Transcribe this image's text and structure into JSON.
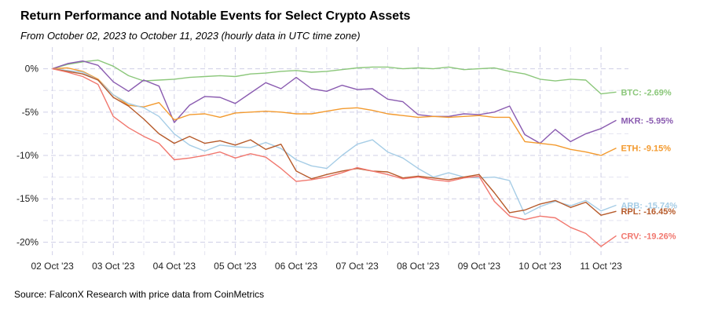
{
  "chart_data": {
    "type": "line",
    "title": "Return Performance and Notable Events for Select Crypto Assets",
    "subtitle": "From October 02, 2023 to October 11, 2023 (hourly data in UTC time zone)",
    "source": "Source: FalconX Research with price data from CoinMetrics",
    "xlabel": "",
    "ylabel": "",
    "x_ticks": [
      "02 Oct '23",
      "03 Oct '23",
      "04 Oct '23",
      "05 Oct '23",
      "06 Oct '23",
      "07 Oct '23",
      "08 Oct '23",
      "09 Oct '23",
      "10 Oct '23",
      "11 Oct '23"
    ],
    "y_ticks": [
      "0%",
      "-5%",
      "-10%",
      "-15%",
      "-20%"
    ],
    "y_tick_values": [
      0,
      -5,
      -10,
      -15,
      -20
    ],
    "xlim": [
      -0.15,
      9.45
    ],
    "ylim": [
      -21.5,
      2.5
    ],
    "grid": true,
    "legend": "end-of-line labels",
    "x": [
      0,
      0.25,
      0.5,
      0.75,
      1,
      1.25,
      1.5,
      1.75,
      2,
      2.25,
      2.5,
      2.75,
      3,
      3.25,
      3.5,
      3.75,
      4,
      4.25,
      4.5,
      4.75,
      5,
      5.25,
      5.5,
      5.75,
      6,
      6.25,
      6.5,
      6.75,
      7,
      7.25,
      7.5,
      7.75,
      8,
      8.25,
      8.5,
      8.75,
      9,
      9.25
    ],
    "series": [
      {
        "name": "BTC",
        "end_label": "BTC: -2.69%",
        "color": "#8bc77a",
        "values": [
          0,
          0.5,
          0.8,
          1.0,
          0.3,
          -0.8,
          -1.4,
          -1.3,
          -1.2,
          -1.0,
          -0.9,
          -0.8,
          -0.9,
          -0.6,
          -0.5,
          -0.3,
          -0.2,
          -0.4,
          -0.3,
          -0.1,
          0.1,
          0.2,
          0.2,
          0.0,
          0.1,
          0.0,
          0.2,
          -0.1,
          0.0,
          0.1,
          -0.3,
          -0.6,
          -1.2,
          -1.4,
          -1.2,
          -1.3,
          -2.9,
          -2.69
        ]
      },
      {
        "name": "MKR",
        "end_label": "MKR: -5.95%",
        "color": "#8a5bb0",
        "values": [
          0,
          0.6,
          0.9,
          0.4,
          -1.5,
          -2.6,
          -1.3,
          -2.0,
          -6.2,
          -4.2,
          -3.2,
          -3.3,
          -4.0,
          -2.8,
          -1.6,
          -2.3,
          -1.0,
          -2.3,
          -2.6,
          -1.9,
          -2.4,
          -2.3,
          -3.5,
          -3.8,
          -5.3,
          -5.5,
          -5.5,
          -5.2,
          -5.3,
          -5.0,
          -4.3,
          -7.6,
          -8.6,
          -7.0,
          -8.4,
          -7.5,
          -6.9,
          -5.95
        ]
      },
      {
        "name": "ETH",
        "end_label": "ETH: -9.15%",
        "color": "#f39a2e",
        "values": [
          0,
          0.1,
          -0.3,
          -1.2,
          -3.0,
          -4.2,
          -4.4,
          -3.9,
          -5.9,
          -5.3,
          -5.2,
          -5.6,
          -5.1,
          -5.0,
          -4.9,
          -5.0,
          -5.2,
          -5.2,
          -4.9,
          -4.6,
          -4.5,
          -4.8,
          -5.2,
          -5.4,
          -5.6,
          -5.5,
          -5.6,
          -5.5,
          -5.4,
          -5.6,
          -5.6,
          -8.4,
          -8.6,
          -8.8,
          -9.3,
          -9.6,
          -10.0,
          -9.15
        ]
      },
      {
        "name": "ARB",
        "end_label": "ARB: -15.74%",
        "color": "#a6cde6",
        "values": [
          0,
          -0.2,
          -0.4,
          -1.3,
          -3.0,
          -4.0,
          -4.5,
          -5.5,
          -7.5,
          -8.8,
          -9.5,
          -8.8,
          -9.0,
          -9.1,
          -8.5,
          -9.2,
          -10.5,
          -11.2,
          -11.5,
          -10.0,
          -8.7,
          -8.2,
          -9.6,
          -10.3,
          -11.5,
          -12.5,
          -12.0,
          -12.5,
          -12.6,
          -12.5,
          -12.9,
          -16.8,
          -15.9,
          -15.3,
          -15.8,
          -15.2,
          -16.4,
          -15.74
        ]
      },
      {
        "name": "RPL",
        "end_label": "RPL: -16.45%",
        "color": "#b65a2a",
        "values": [
          0,
          -0.3,
          -0.6,
          -1.3,
          -3.3,
          -4.3,
          -5.8,
          -7.5,
          -8.6,
          -7.8,
          -8.6,
          -8.3,
          -8.8,
          -8.2,
          -9.3,
          -8.7,
          -11.8,
          -12.7,
          -12.2,
          -11.8,
          -11.5,
          -11.8,
          -11.9,
          -12.6,
          -12.4,
          -12.6,
          -12.8,
          -12.5,
          -12.2,
          -14.3,
          -16.6,
          -16.3,
          -15.6,
          -15.2,
          -16.0,
          -15.4,
          -16.9,
          -16.45
        ]
      },
      {
        "name": "CRV",
        "end_label": "CRV: -19.26%",
        "color": "#f1776e",
        "values": [
          0,
          -0.4,
          -0.9,
          -1.8,
          -5.5,
          -6.8,
          -7.8,
          -8.6,
          -10.5,
          -10.3,
          -10.0,
          -9.6,
          -10.3,
          -9.8,
          -10.2,
          -11.5,
          -13.0,
          -12.8,
          -12.5,
          -12.0,
          -11.4,
          -11.8,
          -12.2,
          -12.7,
          -12.5,
          -12.8,
          -13.0,
          -12.6,
          -12.4,
          -15.3,
          -17.0,
          -17.4,
          -17.0,
          -17.2,
          -18.3,
          -19.0,
          -20.5,
          -19.26
        ]
      }
    ]
  }
}
